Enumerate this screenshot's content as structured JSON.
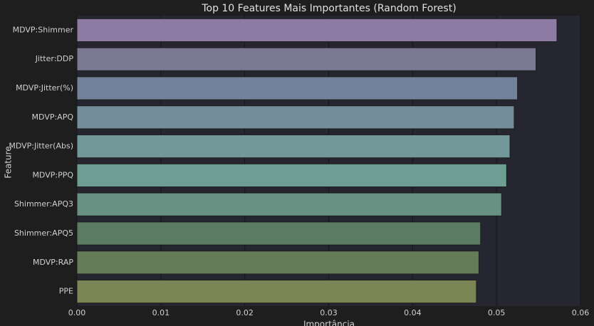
{
  "chart_data": {
    "type": "barh",
    "title": "Top 10 Features Mais Importantes (Random Forest)",
    "x_label": "Importância",
    "y_label": "Feature",
    "categories": [
      "MDVP:Shimmer",
      "Jitter:DDP",
      "MDVP:Jitter(%)",
      "MDVP:APQ",
      "MDVP:Jitter(Abs)",
      "MDVP:PPQ",
      "Shimmer:APQ3",
      "Shimmer:APQ5",
      "MDVP:RAP",
      "PPE"
    ],
    "values": [
      0.0572,
      0.0547,
      0.0525,
      0.0521,
      0.0516,
      0.0512,
      0.0506,
      0.0481,
      0.0479,
      0.0476
    ],
    "colors": [
      "#8e7ba3",
      "#7a7892",
      "#72829a",
      "#738d9b",
      "#72989a",
      "#6e9d94",
      "#679283",
      "#5c7b63",
      "#667c58",
      "#7c8556"
    ],
    "xlim": [
      0,
      0.06
    ],
    "xticks": [
      {
        "value": 0,
        "label": "0.00"
      },
      0.01,
      0.02,
      0.03,
      0.04,
      0.05,
      0.06
    ],
    "grid": true
  }
}
